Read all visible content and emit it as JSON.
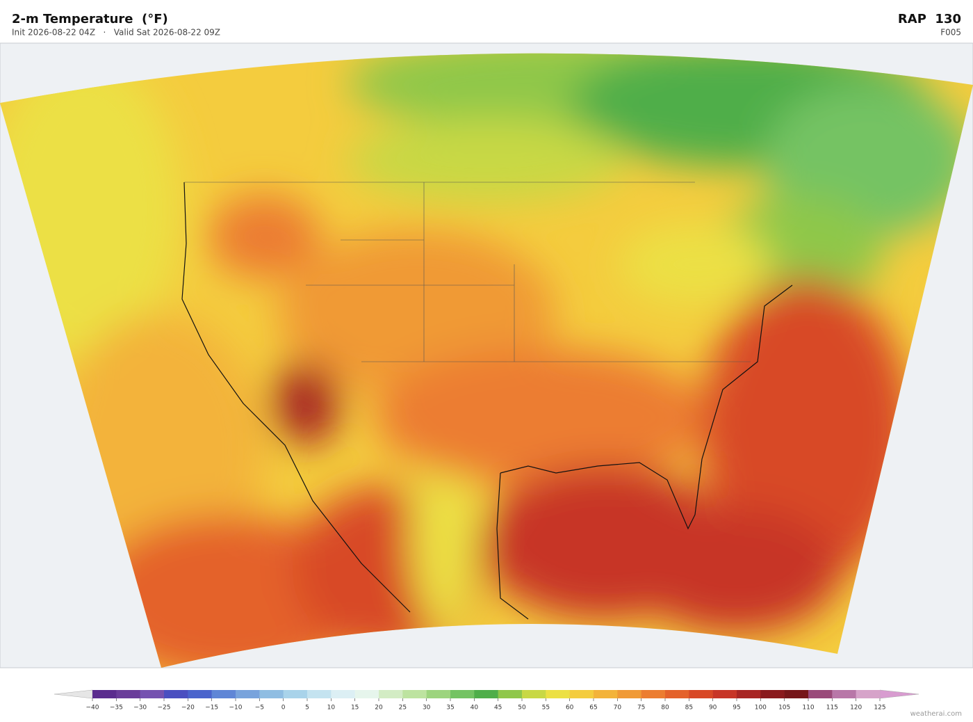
{
  "header": {
    "title": "2-m Temperature  (°F)",
    "subtitle": "Init 2026-08-22 04Z   ·   Valid Sat 2026-08-22 09Z",
    "model": "RAP  130",
    "forecast_hour": "F005"
  },
  "colorbar": {
    "ticks": [
      {
        "value": -40,
        "label": "−40"
      },
      {
        "value": -35,
        "label": "−35"
      },
      {
        "value": -30,
        "label": "−30"
      },
      {
        "value": -25,
        "label": "−25"
      },
      {
        "value": -20,
        "label": "−20"
      },
      {
        "value": -15,
        "label": "−15"
      },
      {
        "value": -10,
        "label": "−10"
      },
      {
        "value": -5,
        "label": "−5"
      },
      0,
      5,
      10,
      15,
      20,
      25,
      30,
      35,
      40,
      45,
      50,
      55,
      60,
      65,
      70,
      75,
      80,
      85,
      90,
      95,
      100,
      105,
      110,
      115,
      120,
      125
    ],
    "colors": [
      "#5b2d8e",
      "#6a3d9a",
      "#7552b0",
      "#4a4fc0",
      "#4a64cc",
      "#5f86d6",
      "#78a3dc",
      "#8fbde2",
      "#a9d3ea",
      "#c4e3f0",
      "#dceff4",
      "#e6f5ec",
      "#d3ecc4",
      "#bde3a0",
      "#9dd47e",
      "#74c363",
      "#4fae4a",
      "#8fc74a",
      "#c8d845",
      "#ece044",
      "#f4cc3e",
      "#f3b33a",
      "#f09a36",
      "#ec7d31",
      "#e4622b",
      "#d84826",
      "#c73527",
      "#a82523",
      "#8a1a1d",
      "#761619",
      "#9a4a7a",
      "#b877a8",
      "#d6a3c9"
    ],
    "under_color": "#e6e6e6",
    "over_color": "#d89cd0"
  },
  "footer": {
    "credit": "weatherai.com"
  }
}
